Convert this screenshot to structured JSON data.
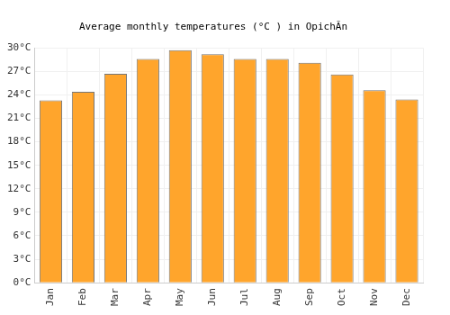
{
  "chart_data": {
    "type": "bar",
    "title": "Average monthly temperatures (°C ) in OpichĂn",
    "categories": [
      "Jan",
      "Feb",
      "Mar",
      "Apr",
      "May",
      "Jun",
      "Jul",
      "Aug",
      "Sep",
      "Oct",
      "Nov",
      "Dec"
    ],
    "values": [
      23.3,
      24.4,
      26.7,
      28.6,
      29.7,
      29.2,
      28.6,
      28.6,
      28.1,
      26.6,
      24.6,
      23.4
    ],
    "color": "#ffa52c",
    "ylim": [
      0,
      30
    ],
    "yticks": [
      {
        "value": 0,
        "label": "0°C"
      },
      {
        "value": 3,
        "label": "3°C"
      },
      {
        "value": 6,
        "label": "6°C"
      },
      {
        "value": 9,
        "label": "9°C"
      },
      {
        "value": 12,
        "label": "12°C"
      },
      {
        "value": 15,
        "label": "15°C"
      },
      {
        "value": 18,
        "label": "18°C"
      },
      {
        "value": 21,
        "label": "21°C"
      },
      {
        "value": 24,
        "label": "24°C"
      },
      {
        "value": 27,
        "label": "27°C"
      },
      {
        "value": 30,
        "label": "30°C"
      }
    ],
    "grid": true
  }
}
